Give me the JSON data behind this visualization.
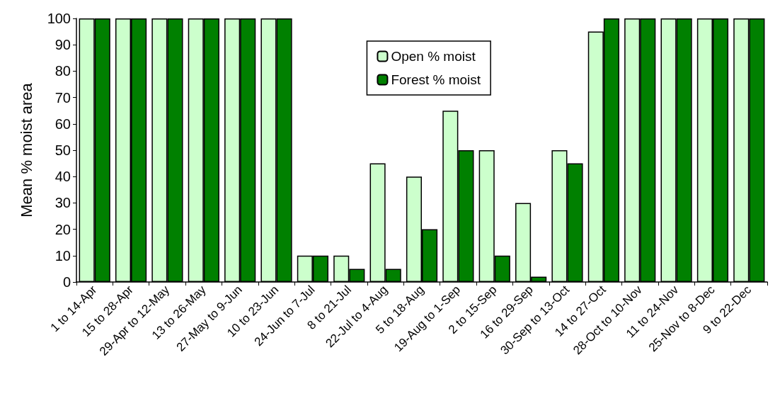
{
  "chart_data": {
    "type": "bar",
    "ylabel": "Mean % moist area",
    "categories": [
      "1 to 14-Apr",
      "15 to 28-Apr",
      "29-Apr to 12-May",
      "13 to 26-May",
      "27-May to 9-Jun",
      "10 to 23-Jun",
      "24-Jun to 7-Jul",
      "8 to 21-Jul",
      "22-Jul to 4-Aug",
      "5 to 18-Aug",
      "19-Aug to 1-Sep",
      "2 to 15-Sep",
      "16 to 29-Sep",
      "30-Sep to 13-Oct",
      "14 to 27-Oct",
      "28-Oct to 10-Nov",
      "11 to 24-Nov",
      "25-Nov to 8-Dec",
      "9 to 22-Dec"
    ],
    "series": [
      {
        "name": "Open % moist",
        "color": "#ccffcc",
        "values": [
          100,
          100,
          100,
          100,
          100,
          100,
          10,
          10,
          45,
          40,
          65,
          50,
          30,
          50,
          95,
          100,
          100,
          100,
          100
        ]
      },
      {
        "name": "Forest % moist",
        "color": "#008000",
        "values": [
          100,
          100,
          100,
          100,
          100,
          100,
          10,
          5,
          5,
          20,
          50,
          10,
          2,
          45,
          100,
          100,
          100,
          100,
          100
        ]
      }
    ],
    "ylim": [
      0,
      100
    ],
    "yticks": [
      0,
      10,
      20,
      30,
      40,
      50,
      60,
      70,
      80,
      90,
      100
    ],
    "grid": false,
    "legend": "top"
  }
}
